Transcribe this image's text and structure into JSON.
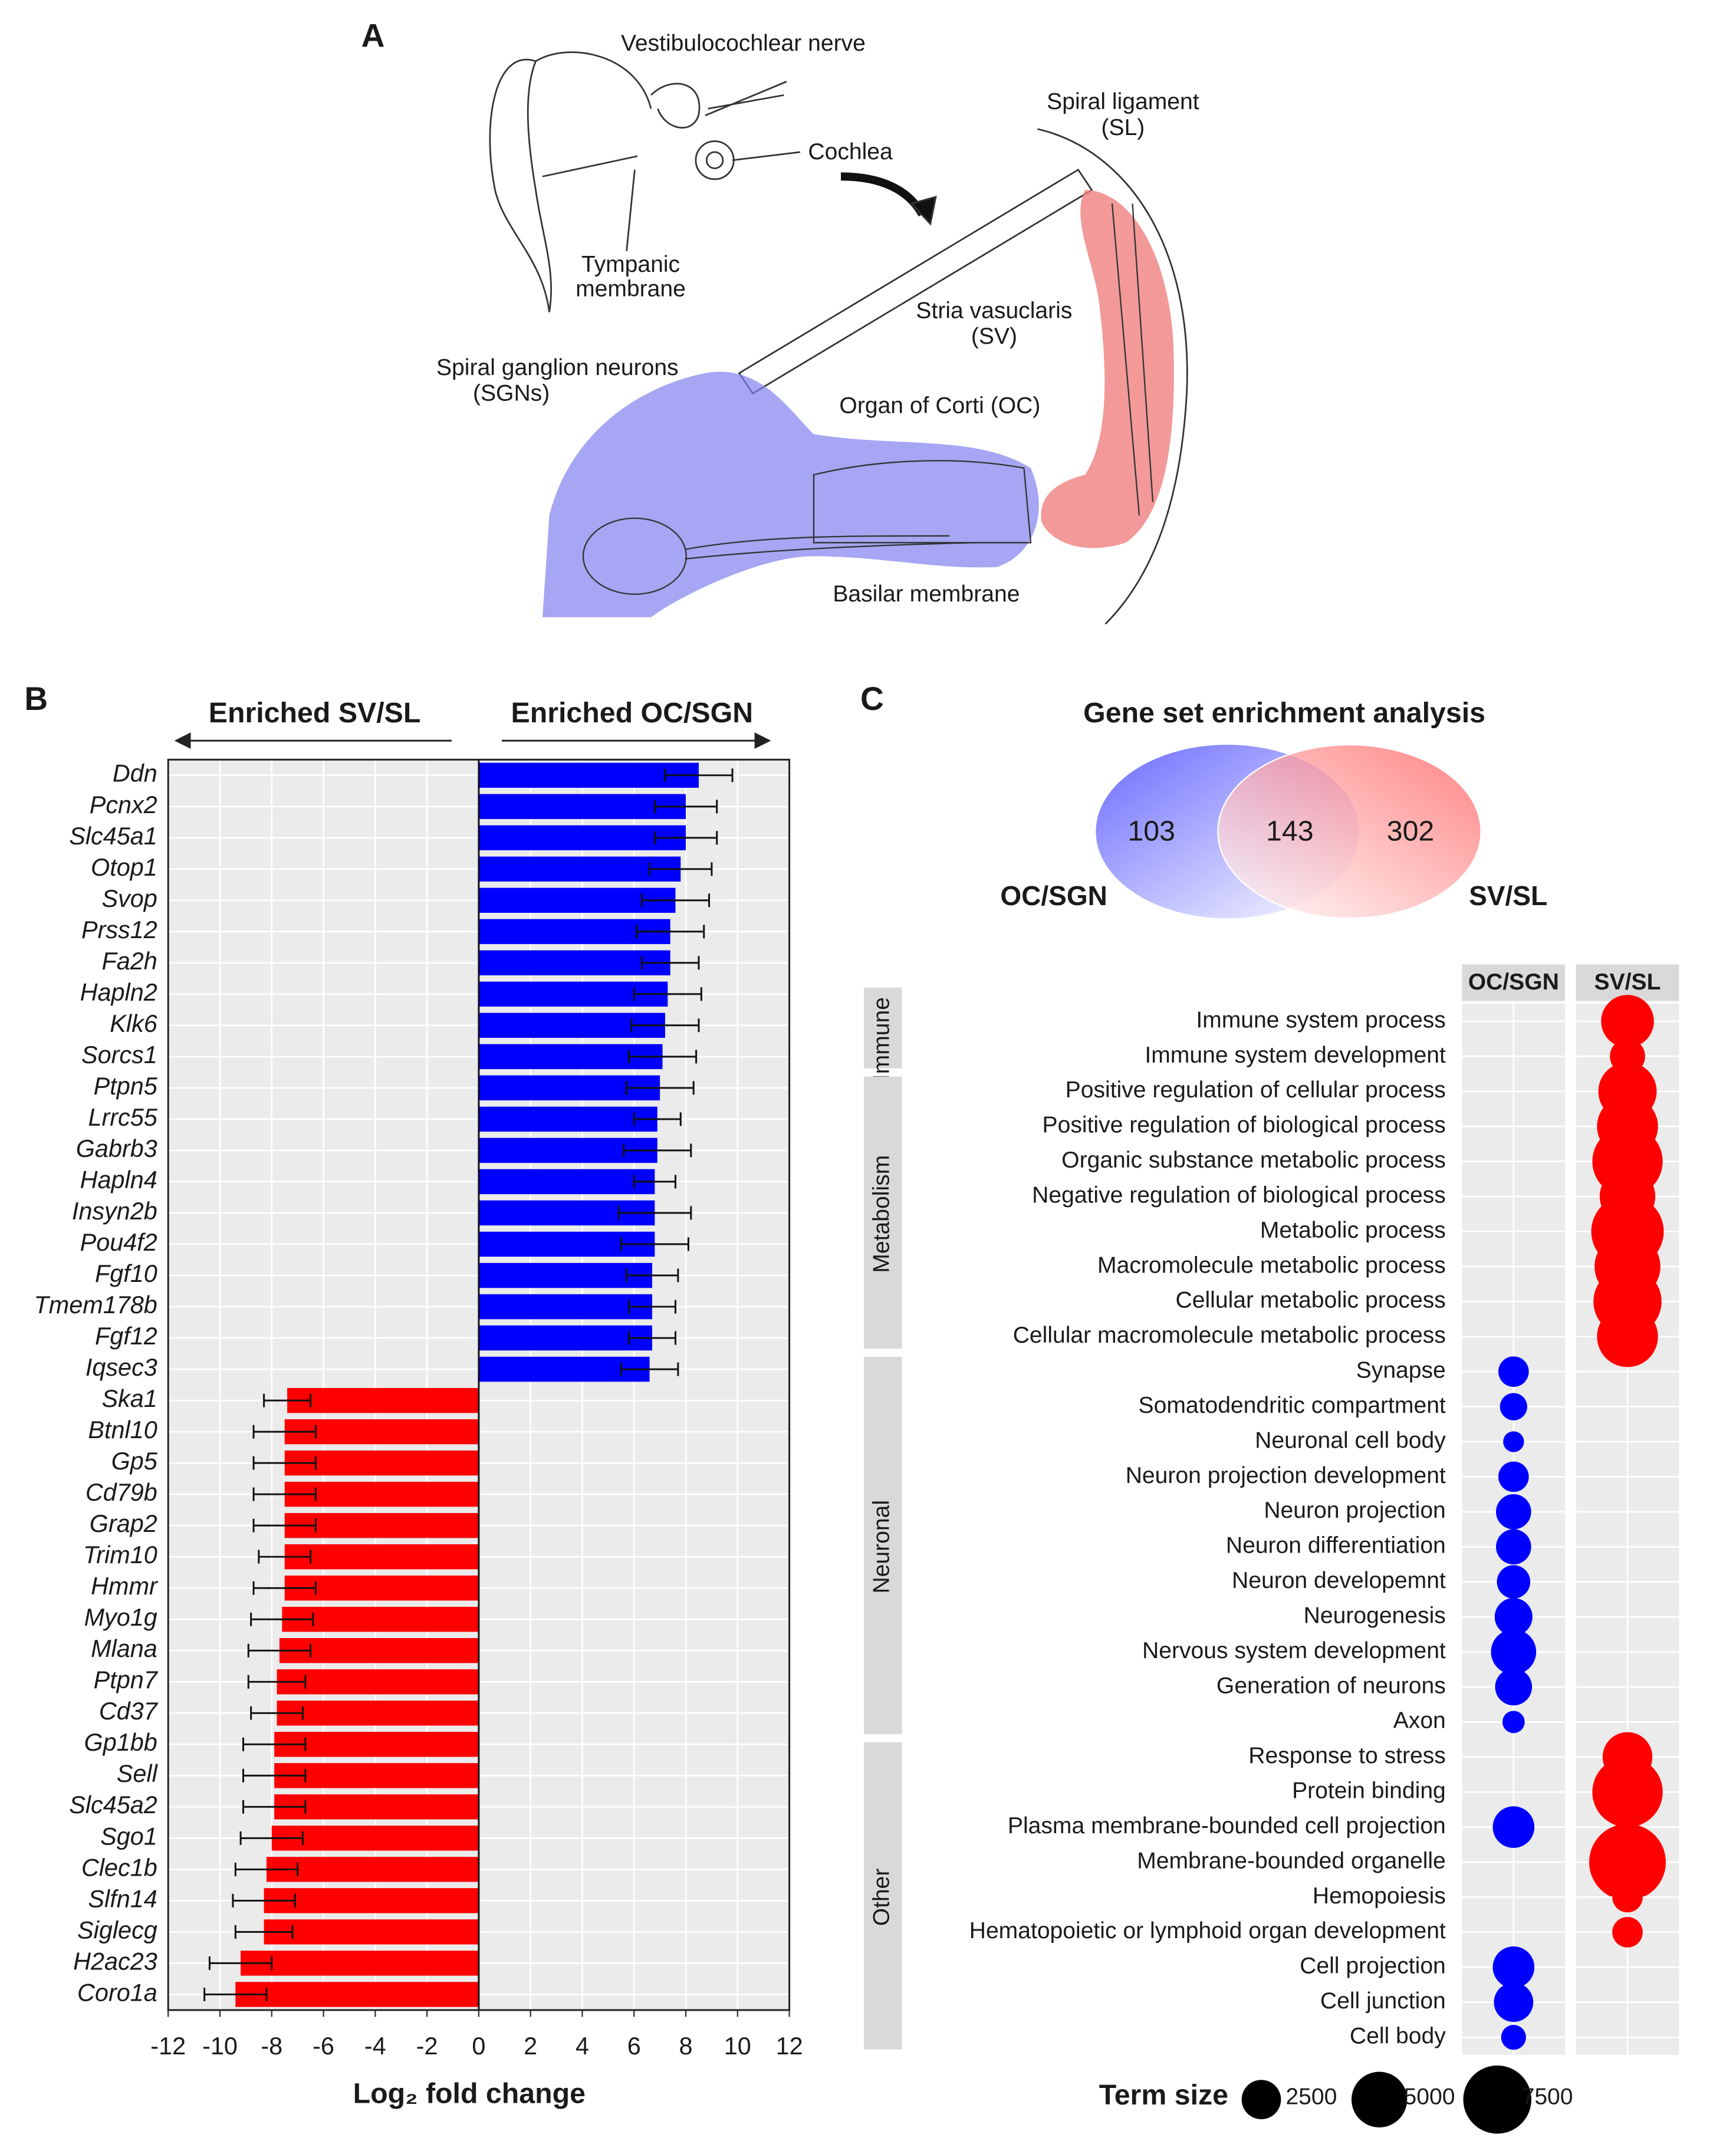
{
  "panel_a": {
    "label": "A",
    "labels": [
      {
        "lines": [
          "Vestibulocochlear nerve"
        ]
      },
      {
        "lines": [
          "Cochlea"
        ]
      },
      {
        "lines": [
          "Spiral ligament",
          "(SL)"
        ]
      },
      {
        "lines": [
          "Tympanic",
          "membrane"
        ]
      },
      {
        "lines": [
          "Stria vasuclaris",
          "(SV)"
        ]
      },
      {
        "lines": [
          "Spiral ganglion neurons",
          "(SGNs)"
        ]
      },
      {
        "lines": [
          "Organ of Corti (OC)"
        ]
      },
      {
        "lines": [
          "Basilar membrane"
        ]
      }
    ]
  },
  "panel_b_label": "B",
  "panel_c_label": "C",
  "chart_data": [
    {
      "type": "hbar",
      "annotations": [
        "Enriched SV/SL",
        "Enriched OC/SGN"
      ],
      "xlabel": "Log₂ fold change",
      "categories": [
        "Ddn",
        "Pcnx2",
        "Slc45a1",
        "Otop1",
        "Svop",
        "Prss12",
        "Fa2h",
        "Hapln2",
        "Klk6",
        "Sorcs1",
        "Ptpn5",
        "Lrrc55",
        "Gabrb3",
        "Hapln4",
        "Insyn2b",
        "Pou4f2",
        "Fgf10",
        "Tmem178b",
        "Fgf12",
        "Iqsec3",
        "Ska1",
        "Btnl10",
        "Gp5",
        "Cd79b",
        "Grap2",
        "Trim10",
        "Hmmr",
        "Myo1g",
        "Mlana",
        "Ptpn7",
        "Cd37",
        "Gp1bb",
        "Sell",
        "Slc45a2",
        "Sgo1",
        "Clec1b",
        "Slfn14",
        "Siglecg",
        "H2ac23",
        "Coro1a"
      ],
      "values": [
        8.5,
        8.0,
        8.0,
        7.8,
        7.6,
        7.4,
        7.4,
        7.3,
        7.2,
        7.1,
        7.0,
        6.9,
        6.9,
        6.8,
        6.8,
        6.8,
        6.7,
        6.7,
        6.7,
        6.6,
        -7.4,
        -7.5,
        -7.5,
        -7.5,
        -7.5,
        -7.5,
        -7.5,
        -7.6,
        -7.7,
        -7.8,
        -7.8,
        -7.9,
        -7.9,
        -7.9,
        -8.0,
        -8.2,
        -8.3,
        -8.3,
        -9.2,
        -9.4
      ],
      "errors": [
        1.3,
        1.2,
        1.2,
        1.2,
        1.3,
        1.3,
        1.1,
        1.3,
        1.3,
        1.3,
        1.3,
        0.9,
        1.3,
        0.8,
        1.4,
        1.3,
        1.0,
        0.9,
        0.9,
        1.1,
        0.9,
        1.2,
        1.2,
        1.2,
        1.2,
        1.0,
        1.2,
        1.2,
        1.2,
        1.1,
        1.0,
        1.2,
        1.2,
        1.2,
        1.2,
        1.2,
        1.2,
        1.1,
        1.2,
        1.2
      ],
      "positive_color": "#0000ff",
      "negative_color": "#ff0000",
      "xlim": [
        -12,
        12
      ],
      "xticks": [
        -12,
        -10,
        -8,
        -6,
        -4,
        -2,
        0,
        2,
        4,
        6,
        8,
        10,
        12
      ],
      "grid": true
    },
    {
      "type": "venn",
      "title": "Gene set enrichment analysis",
      "sets": [
        {
          "name": "OC/SGN",
          "color": "#5a5aff"
        },
        {
          "name": "SV/SL",
          "color": "#ff5a5a"
        }
      ],
      "values": [
        103,
        143,
        302
      ]
    },
    {
      "type": "dotplot",
      "series": [
        {
          "name": "OC/SGN",
          "color": "#0000ff"
        },
        {
          "name": "SV/SL",
          "color": "#ff0000"
        }
      ],
      "groups": [
        {
          "name": "Immune",
          "categories": [
            "Immune system process",
            "Immune system development"
          ],
          "values": [
            [
              null,
              null
            ],
            [
              4500,
              2000
            ]
          ]
        },
        {
          "name": "Metabolism",
          "categories": [
            "Positive regulation of cellular process",
            "Positive regulation of biological process",
            "Organic substance metabolic process",
            "Negative regulation of biological process",
            "Metabolic process",
            "Macromolecule metabolic process",
            "Cellular metabolic process",
            "Cellular macromolecule metabolic process"
          ],
          "values": [
            [
              null,
              null,
              null,
              null,
              null,
              null,
              null,
              null
            ],
            [
              5500,
              6000,
              8000,
              5000,
              8500,
              7000,
              7500,
              6000
            ]
          ]
        },
        {
          "name": "Neuronal",
          "categories": [
            "Synapse",
            "Somatodendritic compartment",
            "Neuronal cell body",
            "Neuron projection development",
            "Neuron projection",
            "Neuron differentiation",
            "Neuron developemnt",
            "Neurogenesis",
            "Nervous system development",
            "Generation of neurons",
            "Axon"
          ],
          "values": [
            [
              1500,
              1200,
              700,
              1500,
              2000,
              2000,
              1800,
              2300,
              3300,
              2200,
              800
            ],
            [
              null,
              null,
              null,
              null,
              null,
              null,
              null,
              null,
              null,
              null,
              null
            ]
          ]
        },
        {
          "name": "Other",
          "categories": [
            "Response to stress",
            "Protein binding",
            "Plasma membrane-bounded cell projection",
            "Membrane-bounded organelle",
            "Hemopoiesis",
            "Hematopoietic or lymphoid organ development",
            "Cell projection",
            "Cell junction",
            "Cell body"
          ],
          "values": [
            [
              null,
              null,
              2800,
              null,
              null,
              null,
              2800,
              2500,
              1000
            ],
            [
              4000,
              8000,
              null,
              9500,
              1500,
              1500,
              null,
              null,
              null
            ]
          ]
        }
      ],
      "size_legend": {
        "title": "Term size",
        "values": [
          2500,
          5000,
          7500
        ]
      }
    }
  ]
}
